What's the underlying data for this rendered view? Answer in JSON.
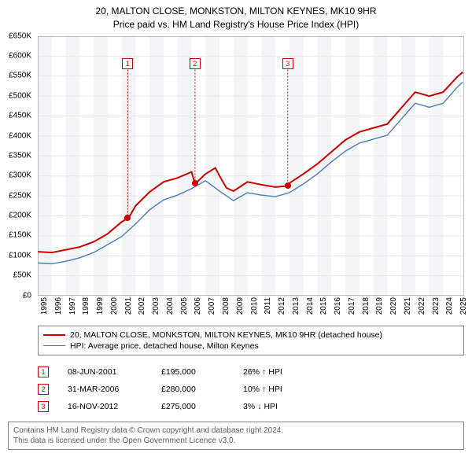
{
  "title": {
    "line1": "20, MALTON CLOSE, MONKSTON, MILTON KEYNES, MK10 9HR",
    "line2": "Price paid vs. HM Land Registry's House Price Index (HPI)"
  },
  "chart": {
    "type": "line",
    "background_color": "#ffffff",
    "grid_color": "#e8e8e8",
    "grid_band_color": "#f3f5f7",
    "axis_color": "#808080",
    "xlim": [
      1995,
      2025.5
    ],
    "ylim": [
      0,
      650000
    ],
    "ytick_step": 50000,
    "y_ticks": [
      "£0",
      "£50K",
      "£100K",
      "£150K",
      "£200K",
      "£250K",
      "£300K",
      "£350K",
      "£400K",
      "£450K",
      "£500K",
      "£550K",
      "£600K",
      "£650K"
    ],
    "x_ticks": [
      1995,
      1996,
      1997,
      1998,
      1999,
      2000,
      2001,
      2002,
      2003,
      2004,
      2005,
      2006,
      2007,
      2008,
      2009,
      2010,
      2011,
      2012,
      2013,
      2014,
      2015,
      2016,
      2017,
      2018,
      2019,
      2020,
      2021,
      2022,
      2023,
      2024,
      2025
    ],
    "series": [
      {
        "name": "20, MALTON CLOSE, MONKSTON, MILTON KEYNES, MK10 9HR (detached house)",
        "color": "#cc0000",
        "line_width": 2,
        "data": [
          [
            1995,
            110000
          ],
          [
            1996,
            108000
          ],
          [
            1997,
            115000
          ],
          [
            1998,
            122000
          ],
          [
            1999,
            135000
          ],
          [
            2000,
            155000
          ],
          [
            2001,
            185000
          ],
          [
            2001.5,
            195000
          ],
          [
            2002,
            225000
          ],
          [
            2003,
            260000
          ],
          [
            2004,
            285000
          ],
          [
            2005,
            295000
          ],
          [
            2006,
            310000
          ],
          [
            2006.25,
            280000
          ],
          [
            2007,
            305000
          ],
          [
            2007.7,
            320000
          ],
          [
            2008,
            300000
          ],
          [
            2008.5,
            270000
          ],
          [
            2009,
            262000
          ],
          [
            2010,
            285000
          ],
          [
            2011,
            278000
          ],
          [
            2012,
            272000
          ],
          [
            2012.9,
            275000
          ],
          [
            2013,
            282000
          ],
          [
            2014,
            305000
          ],
          [
            2015,
            330000
          ],
          [
            2016,
            360000
          ],
          [
            2017,
            390000
          ],
          [
            2018,
            410000
          ],
          [
            2019,
            420000
          ],
          [
            2020,
            430000
          ],
          [
            2021,
            470000
          ],
          [
            2022,
            510000
          ],
          [
            2023,
            500000
          ],
          [
            2024,
            510000
          ],
          [
            2025,
            548000
          ],
          [
            2025.4,
            560000
          ]
        ]
      },
      {
        "name": "HPI: Average price, detached house, Milton Keynes",
        "color": "#4a7ebb",
        "line_width": 1.4,
        "data": [
          [
            1995,
            82000
          ],
          [
            1996,
            80000
          ],
          [
            1997,
            86000
          ],
          [
            1998,
            95000
          ],
          [
            1999,
            108000
          ],
          [
            2000,
            128000
          ],
          [
            2001,
            148000
          ],
          [
            2002,
            180000
          ],
          [
            2003,
            215000
          ],
          [
            2004,
            240000
          ],
          [
            2005,
            252000
          ],
          [
            2006,
            268000
          ],
          [
            2007,
            288000
          ],
          [
            2008,
            262000
          ],
          [
            2009,
            238000
          ],
          [
            2010,
            258000
          ],
          [
            2011,
            252000
          ],
          [
            2012,
            248000
          ],
          [
            2013,
            258000
          ],
          [
            2014,
            280000
          ],
          [
            2015,
            305000
          ],
          [
            2016,
            335000
          ],
          [
            2017,
            362000
          ],
          [
            2018,
            382000
          ],
          [
            2019,
            392000
          ],
          [
            2020,
            402000
          ],
          [
            2021,
            442000
          ],
          [
            2022,
            482000
          ],
          [
            2023,
            472000
          ],
          [
            2024,
            482000
          ],
          [
            2025,
            522000
          ],
          [
            2025.4,
            535000
          ]
        ]
      }
    ],
    "sale_markers": [
      {
        "label": "1",
        "x": 2001.44,
        "y": 195000,
        "box_y": 580000,
        "color": "#cc0000"
      },
      {
        "label": "2",
        "x": 2006.25,
        "y": 280000,
        "box_y": 580000,
        "color": "#cc0000"
      },
      {
        "label": "3",
        "x": 2012.88,
        "y": 275000,
        "box_y": 580000,
        "color": "#cc0000"
      }
    ]
  },
  "legend": {
    "items": [
      {
        "color": "#cc0000",
        "width": 2,
        "label": "20, MALTON CLOSE, MONKSTON, MILTON KEYNES, MK10 9HR (detached house)"
      },
      {
        "color": "#4a7ebb",
        "width": 1.4,
        "label": "HPI: Average price, detached house, Milton Keynes"
      }
    ]
  },
  "events": [
    {
      "num": "1",
      "color": "#cc0000",
      "date": "08-JUN-2001",
      "price": "£195,000",
      "delta": "26%",
      "arrow": "↑",
      "suffix": "HPI"
    },
    {
      "num": "2",
      "color": "#cc0000",
      "date": "31-MAR-2006",
      "price": "£280,000",
      "delta": "10%",
      "arrow": "↑",
      "suffix": "HPI"
    },
    {
      "num": "3",
      "color": "#cc0000",
      "date": "16-NOV-2012",
      "price": "£275,000",
      "delta": "3%",
      "arrow": "↓",
      "suffix": "HPI"
    }
  ],
  "footer": {
    "line1": "Contains HM Land Registry data © Crown copyright and database right 2024.",
    "line2": "This data is licensed under the Open Government Licence v3.0."
  }
}
